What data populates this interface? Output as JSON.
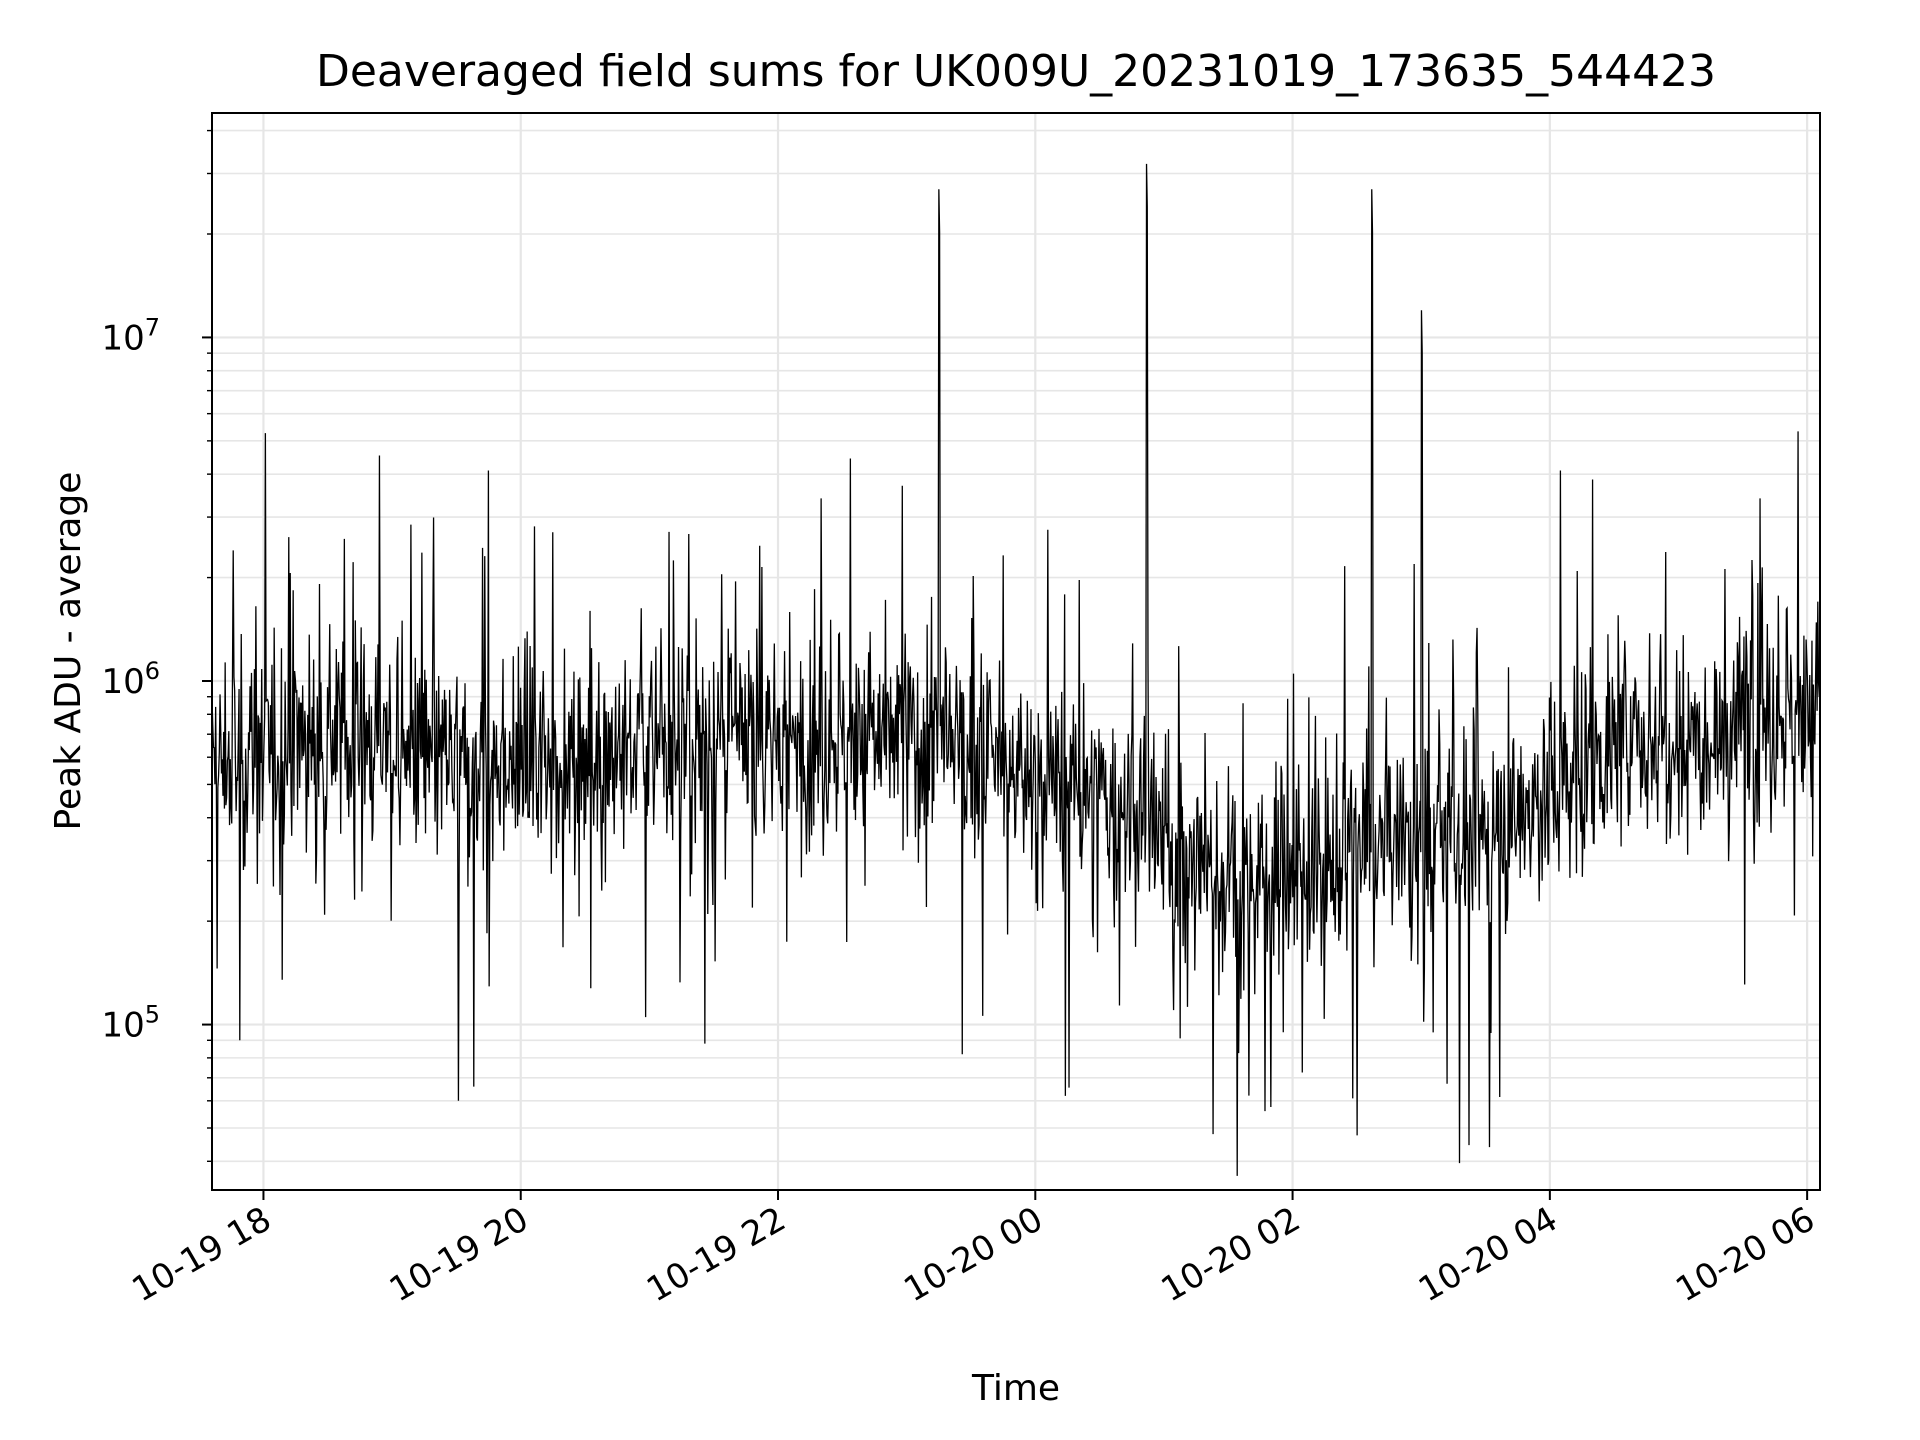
{
  "chart_data": {
    "type": "line",
    "title": "Deaveraged field sums for UK009U_20231019_173635_544423",
    "xlabel": "Time",
    "ylabel": "Peak ADU - average",
    "x_start": "2023-10-19 17:36",
    "x_end": "2023-10-20 06:06",
    "xlim": [
      "2023-10-19 17:36",
      "2023-10-20 06:06"
    ],
    "ylim": [
      33000,
      45000000
    ],
    "yscale": "log",
    "grid": true,
    "legend": "none",
    "x_ticks": [
      {
        "value": "2023-10-19 18:00",
        "label": "10-19 18"
      },
      {
        "value": "2023-10-19 20:00",
        "label": "10-19 20"
      },
      {
        "value": "2023-10-19 22:00",
        "label": "10-19 22"
      },
      {
        "value": "2023-10-20 00:00",
        "label": "10-20 00"
      },
      {
        "value": "2023-10-20 02:00",
        "label": "10-20 02"
      },
      {
        "value": "2023-10-20 04:00",
        "label": "10-20 04"
      },
      {
        "value": "2023-10-20 06:00",
        "label": "10-20 06"
      }
    ],
    "y_ticks": [
      {
        "value": 100000,
        "base": "10",
        "exp": "5"
      },
      {
        "value": 1000000,
        "base": "10",
        "exp": "6"
      },
      {
        "value": 10000000,
        "base": "10",
        "exp": "7"
      }
    ],
    "series": [
      {
        "color": "#000000",
        "baseline": [
          [
            "2023-10-19 17:36",
            550000
          ],
          [
            "2023-10-19 18:30",
            750000
          ],
          [
            "2023-10-19 19:30",
            550000
          ],
          [
            "2023-10-19 21:00",
            650000
          ],
          [
            "2023-10-19 23:00",
            700000
          ],
          [
            "2023-10-20 00:30",
            450000
          ],
          [
            "2023-10-20 01:30",
            250000
          ],
          [
            "2023-10-20 02:30",
            320000
          ],
          [
            "2023-10-20 03:30",
            350000
          ],
          [
            "2023-10-20 04:30",
            650000
          ],
          [
            "2023-10-20 06:06",
            850000
          ]
        ],
        "spikes": [
          [
            "2023-10-19 17:46",
            2400000
          ],
          [
            "2023-10-19 19:45",
            4100000
          ],
          [
            "2023-10-19 22:20",
            3400000
          ],
          [
            "2023-10-19 22:58",
            3700000
          ],
          [
            "2023-10-19 23:15",
            27000000
          ],
          [
            "2023-10-20 00:52",
            32000000
          ],
          [
            "2023-10-20 02:37",
            27000000
          ],
          [
            "2023-10-20 03:00",
            12000000
          ],
          [
            "2023-10-20 04:05",
            4100000
          ],
          [
            "2023-10-20 05:38",
            3400000
          ]
        ],
        "dips": [
          [
            "2023-10-19 17:49",
            90000
          ],
          [
            "2023-10-19 19:31",
            60000
          ],
          [
            "2023-10-19 19:38",
            66000
          ],
          [
            "2023-10-19 21:26",
            88000
          ],
          [
            "2023-10-19 23:26",
            82000
          ],
          [
            "2023-10-20 00:14",
            62000
          ],
          [
            "2023-10-20 01:23",
            48000
          ],
          [
            "2023-10-20 01:47",
            56000
          ],
          [
            "2023-10-20 02:28",
            61000
          ],
          [
            "2023-10-20 03:32",
            44000
          ]
        ]
      }
    ]
  }
}
